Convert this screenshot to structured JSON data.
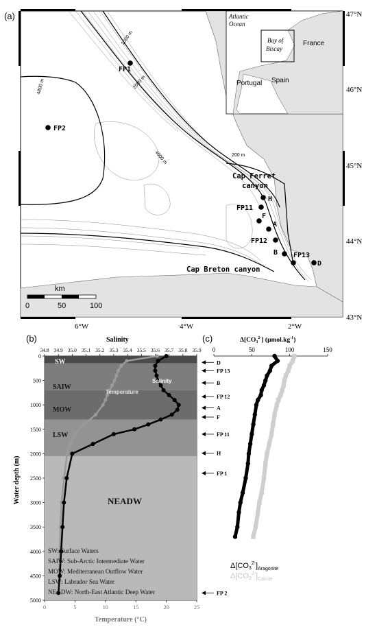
{
  "panel_a": {
    "label": "(a)",
    "lat_labels": [
      "47°N",
      "46°N",
      "45°N",
      "44°N",
      "43°N"
    ],
    "lon_labels": [
      "6°W",
      "4°W",
      "2°W"
    ],
    "contour_labels": [
      "1000 m",
      "2000 m",
      "4800 m",
      "4000 m",
      "200 m"
    ],
    "canyons": [
      "Cap Ferret",
      "canyon",
      "Cap Breton canyon"
    ],
    "stations": [
      "FP1",
      "FP2",
      "H",
      "FP11",
      "F",
      "A",
      "FP12",
      "B",
      "FP13",
      "D"
    ],
    "scale": {
      "unit": "km",
      "ticks": [
        "0",
        "50",
        "100"
      ]
    },
    "inset": {
      "ocean1": "Atlantic",
      "ocean2": "Ocean",
      "bay1": "Bay of",
      "bay2": "Biscay",
      "france": "France",
      "portugal": "Portugal",
      "spain": "Spain"
    }
  },
  "panel_b": {
    "label": "(b)",
    "top_axis_title": "Salinity",
    "salinity_ticks": [
      "34.8",
      "34.9",
      "35.0",
      "35.1",
      "35.2",
      "35.3",
      "35.4",
      "35.5",
      "35.6",
      "35.7",
      "35.8",
      "35.9"
    ],
    "depth_ticks": [
      "0",
      "500",
      "1000",
      "1500",
      "2000",
      "2500",
      "3000",
      "3500",
      "4000",
      "4500",
      "5000"
    ],
    "temp_ticks": [
      "0",
      "5",
      "10",
      "15",
      "20",
      "25"
    ],
    "ylabel": "Water depth (m)",
    "xlabel": "Temperature (°C)",
    "curve_labels": {
      "temperature": "Temperature",
      "salinity": "Salinity"
    },
    "water_masses": [
      "SW",
      "SAIW",
      "MOW",
      "LSW",
      "NEADW"
    ],
    "legend": [
      "SW: Surface Waters",
      "SAIW: Sub-Arctic Intermediate Water",
      "MOW: Mediterranean Outflow Water",
      "LSW: Labrador Sea Water",
      "NEADW: North-East Atlantic Deep Water"
    ]
  },
  "panel_c": {
    "label": "(c)",
    "title_prefix": "Δ[CO",
    "title_sub": "3",
    "title_sup": "2-",
    "title_suffix": "] (μmol.kg",
    "title_sup2": "-1",
    "title_close": ")",
    "ticks": [
      "0",
      "50",
      "100",
      "150"
    ],
    "legend_aragonite": {
      "prefix": "Δ[CO",
      "sub": "3",
      "sup": "2-",
      "close": "]",
      "mineral": "Aragonite"
    },
    "legend_calcite": {
      "prefix": "Δ[CO",
      "sub": "3",
      "sup": "2-",
      "close": "]",
      "mineral": "Calcite"
    }
  },
  "station_arrows": [
    "D",
    "FP 13",
    "B",
    "FP 12",
    "A",
    "F",
    "FP 11",
    "H",
    "FP 1",
    "FP 2"
  ],
  "chart_data": {
    "type": "line",
    "depth_unit": "m",
    "series": [
      {
        "name": "Temperature",
        "x_unit": "°C",
        "depth": [
          0,
          100,
          200,
          300,
          400,
          500,
          600,
          700,
          800,
          900,
          1000,
          1200,
          1400,
          1600,
          1800,
          2000,
          2500,
          3000,
          3500,
          4000,
          4500,
          4850
        ],
        "values": [
          18.5,
          13.5,
          12.6,
          12.1,
          11.8,
          11.5,
          11.1,
          10.7,
          10.3,
          10.0,
          9.6,
          8.4,
          6.5,
          5.0,
          4.2,
          3.7,
          3.2,
          2.8,
          2.6,
          2.5,
          2.4,
          2.4
        ]
      },
      {
        "name": "Salinity",
        "x_unit": "",
        "depth": [
          0,
          100,
          200,
          300,
          400,
          500,
          600,
          700,
          800,
          900,
          1000,
          1100,
          1200,
          1300,
          1400,
          1500,
          1600,
          1800,
          2000,
          2500,
          3000,
          3500,
          4000,
          4500,
          4850
        ],
        "values": [
          35.68,
          35.62,
          35.6,
          35.6,
          35.61,
          35.62,
          35.64,
          35.66,
          35.7,
          35.74,
          35.77,
          35.76,
          35.72,
          35.64,
          35.55,
          35.45,
          35.3,
          35.15,
          35.0,
          34.96,
          34.94,
          34.93,
          34.92,
          34.91,
          34.9
        ]
      },
      {
        "name": "Aragonite",
        "x_unit": "μmol.kg-1",
        "depth": [
          0,
          100,
          200,
          300,
          400,
          500,
          600,
          700,
          800,
          900,
          1000,
          1200,
          1400,
          1600,
          1800,
          2000,
          2200,
          2500,
          2800,
          3000,
          3200,
          3500,
          3700
        ],
        "values": [
          80,
          84,
          76,
          74,
          70,
          68,
          66,
          63,
          62,
          58,
          56,
          54,
          52,
          50,
          48,
          46,
          45,
          42,
          38,
          35,
          33,
          31,
          28
        ]
      },
      {
        "name": "Calcite",
        "x_unit": "μmol.kg-1",
        "depth": [
          0,
          100,
          200,
          300,
          400,
          500,
          600,
          700,
          800,
          900,
          1000,
          1200,
          1400,
          1600,
          1800,
          2000,
          2200,
          2500,
          2800,
          3000,
          3200,
          3500,
          3700
        ],
        "values": [
          106,
          104,
          100,
          98,
          95,
          93,
          92,
          90,
          88,
          85,
          83,
          80,
          78,
          76,
          73,
          70,
          68,
          66,
          63,
          60,
          58,
          55,
          52
        ]
      }
    ],
    "water_mass_depths": [
      {
        "name": "SW",
        "top": 0,
        "bottom": 150
      },
      {
        "name": "SAIW",
        "top": 150,
        "bottom": 700
      },
      {
        "name": "MOW",
        "top": 700,
        "bottom": 1300
      },
      {
        "name": "LSW",
        "top": 1300,
        "bottom": 2050
      },
      {
        "name": "NEADW",
        "top": 2050,
        "bottom": 5000
      }
    ],
    "station_depths": [
      {
        "name": "D",
        "depth": 130
      },
      {
        "name": "FP 13",
        "depth": 300
      },
      {
        "name": "B",
        "depth": 550
      },
      {
        "name": "FP 12",
        "depth": 830
      },
      {
        "name": "A",
        "depth": 1060
      },
      {
        "name": "F",
        "depth": 1250
      },
      {
        "name": "FP 11",
        "depth": 1600
      },
      {
        "name": "H",
        "depth": 1990
      },
      {
        "name": "FP 1",
        "depth": 2400
      },
      {
        "name": "FP 2",
        "depth": 4850
      }
    ],
    "temp_range": [
      0,
      25
    ],
    "salinity_range": [
      34.8,
      35.9
    ],
    "co3_range": [
      0,
      150
    ],
    "depth_range": [
      0,
      5000
    ]
  }
}
